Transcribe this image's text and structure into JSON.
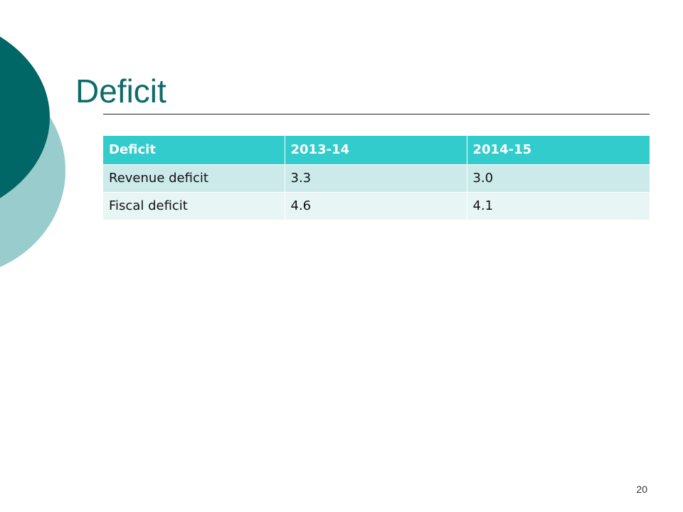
{
  "slide": {
    "title": "Deficit",
    "page_number": "20",
    "colors": {
      "accent_dark": "#006666",
      "accent_light": "#99cccc",
      "title": "#0f6b6b",
      "table_header": "#33cccc",
      "table_row_odd": "#cceaea",
      "table_row_even": "#e8f5f5"
    }
  },
  "table": {
    "headers": [
      "Deficit",
      "2013-14",
      "2014-15"
    ],
    "rows": [
      [
        "Revenue deficit",
        "3.3",
        "3.0"
      ],
      [
        "Fiscal deficit",
        "4.6",
        "4.1"
      ]
    ]
  }
}
